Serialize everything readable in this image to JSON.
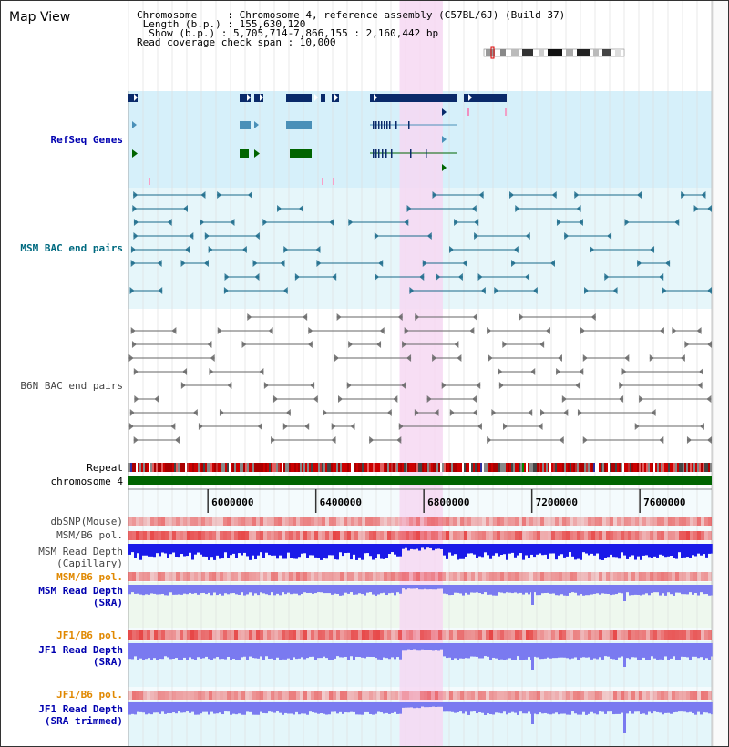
{
  "view": {
    "title": "Map View",
    "info_lines": [
      "Chromosome     : Chromosome 4, reference assembly (C57BL/6J) (Build 37)",
      " Length (b.p.) : 155,630,120",
      "  Show (b.p.) : 5,705,714-7,866,155 : 2,160,442 bp",
      "Read coverage check span : 10,000"
    ]
  },
  "tracks": {
    "refseq": "RefSeq Genes",
    "msm_bac": "MSM BAC end pairs",
    "b6n_bac": "B6N BAC end pairs",
    "repeat": "Repeat",
    "chromosome": "chromosome 4",
    "dbsnp": "dbSNP(Mouse)",
    "msm_b6_pol": "MSM/B6 pol.",
    "msm_depth_cap_1": "MSM Read Depth",
    "msm_depth_cap_2": "(Capillary)",
    "msm_b6_pol_2": "MSM/B6 pol.",
    "msm_depth_sra_1": "MSM Read Depth",
    "msm_depth_sra_2": "(SRA)",
    "jf1_b6_pol": "JF1/B6 pol.",
    "jf1_depth_sra_1": "JF1 Read Depth",
    "jf1_depth_sra_2": "(SRA)",
    "jf1_b6_pol_2": "JF1/B6 pol.",
    "jf1_depth_trim_1": "JF1 Read Depth",
    "jf1_depth_trim_2": "(SRA trimmed)"
  },
  "axis": {
    "start_bp": 5705714,
    "end_bp": 7866155,
    "ticks": [
      6000000,
      6400000,
      6800000,
      7200000,
      7600000
    ],
    "tick_labels": [
      "6000000",
      "6400000",
      "6800000",
      "7200000",
      "7600000"
    ]
  },
  "highlight": {
    "start_bp": 6710000,
    "end_bp": 6870000
  },
  "colors": {
    "highlight": "#f6d8f2",
    "refseq_bg": "#d6f0fa",
    "msm_bg": "#e6f6fa",
    "gene_dark": "#0a2a6a",
    "gene_mid": "#4a90b8",
    "gene_green": "#006400",
    "msm_line": "#1a6a8a",
    "b6n_line": "#666666",
    "chromosome": "#006400",
    "depth_capillary": "#1a1ae8",
    "depth_sra": "#7a7af0"
  }
}
